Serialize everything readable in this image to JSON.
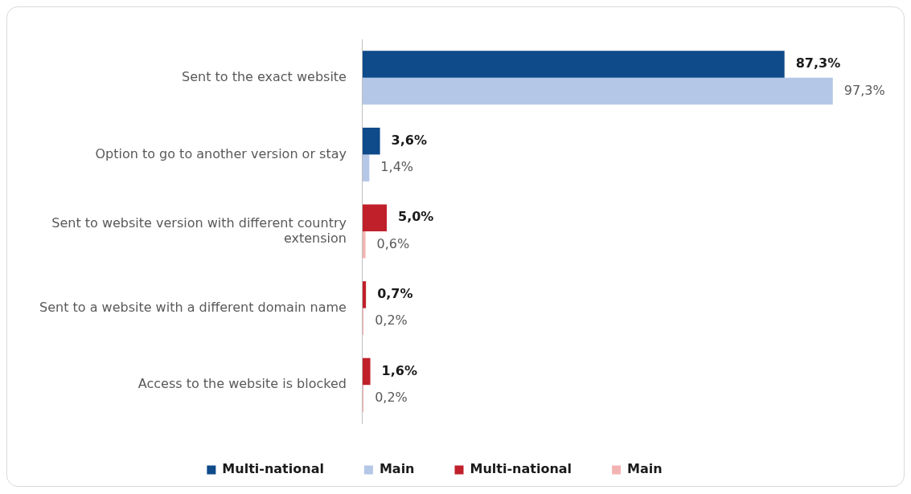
{
  "chart_data": {
    "type": "bar",
    "orientation": "horizontal",
    "categories": [
      "Sent to the exact website",
      "Option to go to another version or stay",
      "Sent to website version with different country extension",
      "Sent to a website with a different domain name",
      "Access to the website is blocked"
    ],
    "series": [
      {
        "name": "Multi-national",
        "color": "#0f4a8a",
        "values": [
          87.3,
          3.6,
          null,
          null,
          null
        ],
        "value_labels": [
          "87,3%",
          "3,6%",
          null,
          null,
          null
        ]
      },
      {
        "name": "Main",
        "color": "#b4c7e7",
        "values": [
          97.3,
          1.4,
          null,
          null,
          null
        ],
        "value_labels": [
          "97,3%",
          "1,4%",
          null,
          null,
          null
        ]
      },
      {
        "name": "Multi-national",
        "color": "#c0202a",
        "values": [
          null,
          null,
          5.0,
          0.7,
          1.6
        ],
        "value_labels": [
          null,
          null,
          "5,0%",
          "0,7%",
          "1,6%"
        ]
      },
      {
        "name": "Main",
        "color": "#f4b3b3",
        "values": [
          null,
          null,
          0.6,
          0.2,
          0.2
        ],
        "value_labels": [
          null,
          null,
          "0,6%",
          "0,2%",
          "0,2%"
        ]
      }
    ],
    "legend": "bottom",
    "grid": false,
    "tick_labels": "y"
  }
}
